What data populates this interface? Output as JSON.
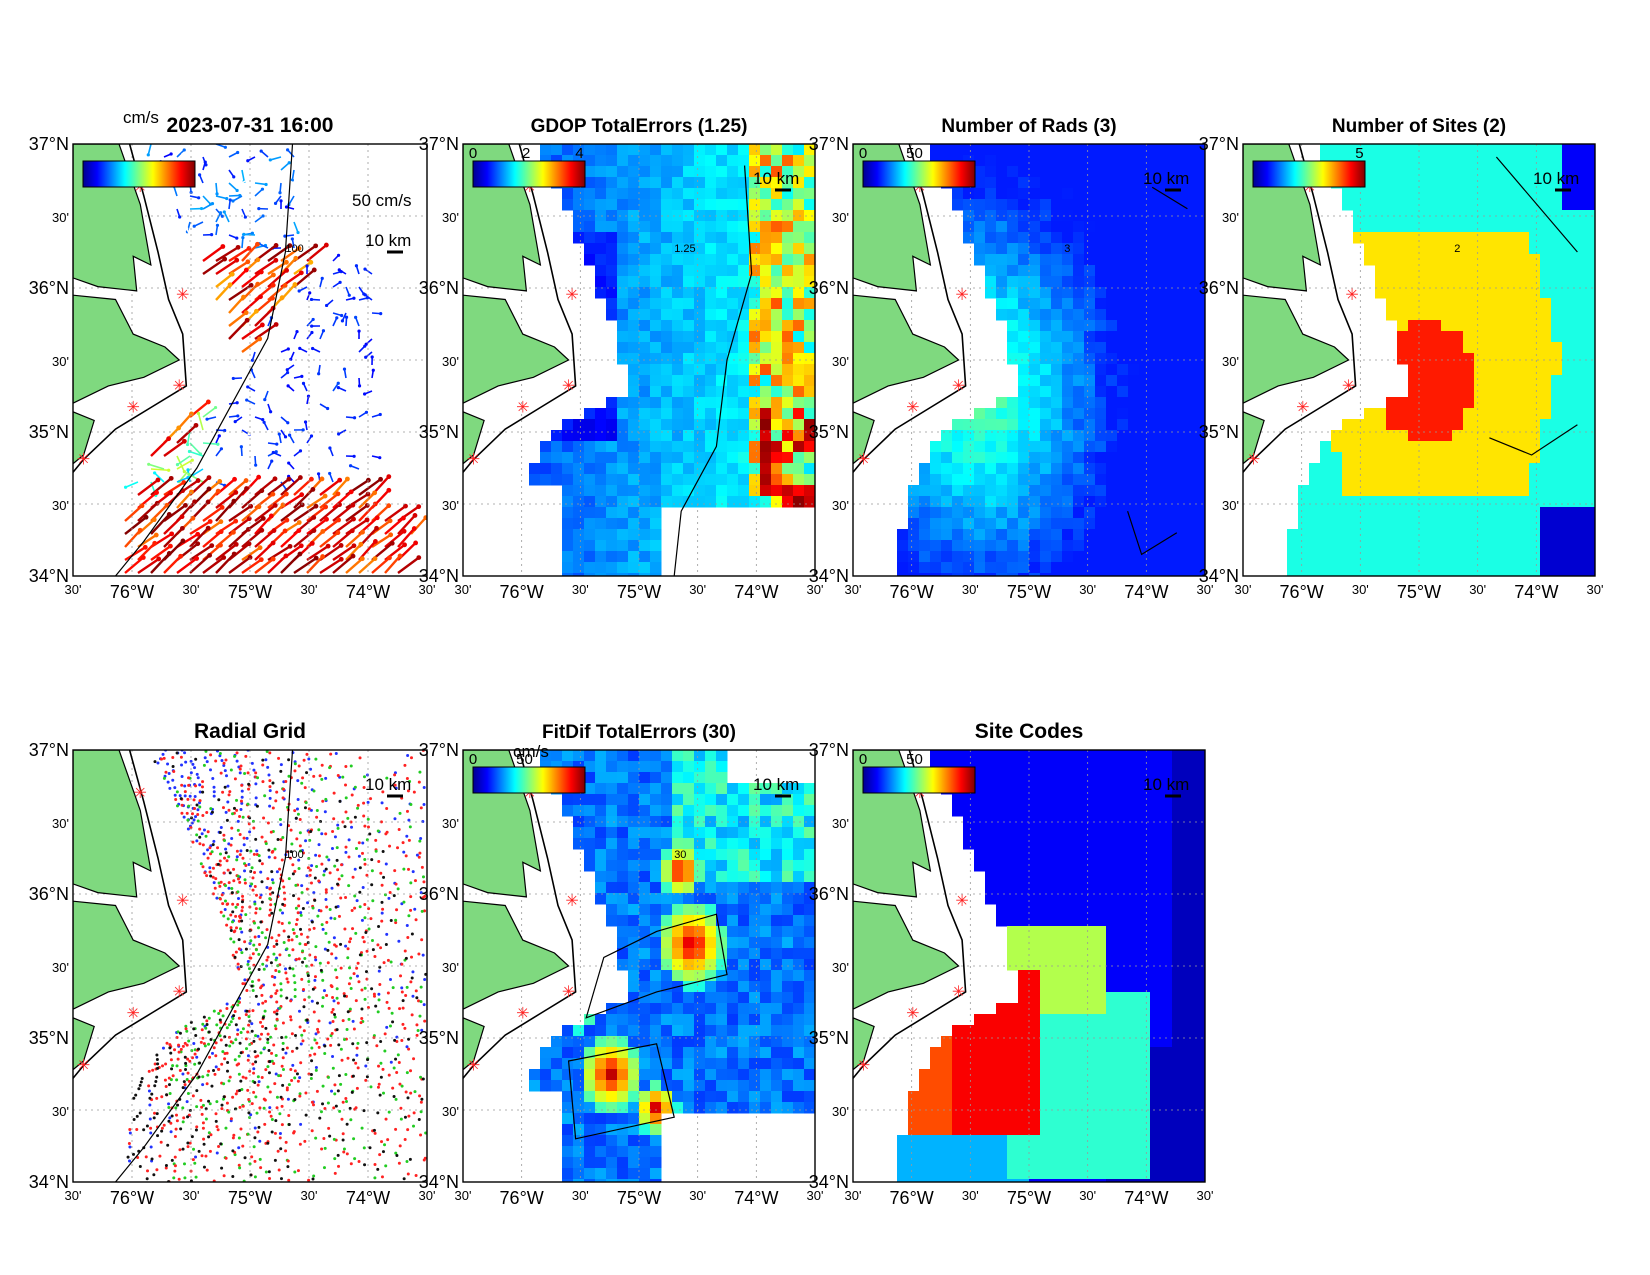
{
  "figure": {
    "panels": [
      {
        "id": "vectors",
        "title": "2023-07-31 16:00",
        "colorbar": {
          "unit": "cm/s",
          "ticks": []
        },
        "scale_label": "10 km",
        "vector_label": "50 cm/s",
        "contour_label": "100",
        "field": "vectors"
      },
      {
        "id": "gdop",
        "title": "GDOP TotalErrors (1.25)",
        "colorbar": {
          "unit": "",
          "ticks": [
            "0",
            "2",
            "4"
          ]
        },
        "scale_label": "10 km",
        "contour_label": "1.25",
        "field": "gdop"
      },
      {
        "id": "nrads",
        "title": "Number of Rads (3)",
        "colorbar": {
          "unit": "",
          "ticks": [
            "0",
            "50"
          ]
        },
        "scale_label": "10 km",
        "contour_label": "3",
        "field": "nrads"
      },
      {
        "id": "nsites",
        "title": "Number of Sites (2)",
        "colorbar": {
          "unit": "",
          "ticks": [
            "5"
          ]
        },
        "scale_label": "10 km",
        "contour_label": "2",
        "field": "nsites"
      },
      {
        "id": "radial",
        "title": "Radial Grid",
        "colorbar": null,
        "scale_label": "10 km",
        "contour_label": "100",
        "field": "radial"
      },
      {
        "id": "fitdif",
        "title": "FitDif TotalErrors (30)",
        "colorbar": {
          "unit": "cm/s",
          "ticks": [
            "0",
            "50"
          ]
        },
        "scale_label": "10 km",
        "contour_label": "30",
        "field": "fitdif"
      },
      {
        "id": "sitecodes",
        "title": "Site Codes",
        "colorbar": {
          "unit": "",
          "ticks": [
            "0",
            "50"
          ]
        },
        "scale_label": "10 km",
        "contour_label": "",
        "field": "sitecodes"
      }
    ],
    "lat_labels": [
      "37°N",
      "30'",
      "36°N",
      "30'",
      "35°N",
      "30'",
      "34°N"
    ],
    "lon_labels": [
      "30'",
      "76°W",
      "30'",
      "75°W",
      "30'",
      "74°W",
      "30'"
    ],
    "colors": {
      "land": "#7FD97F",
      "site_marker": "#ff2222",
      "coast": "#000000"
    }
  }
}
